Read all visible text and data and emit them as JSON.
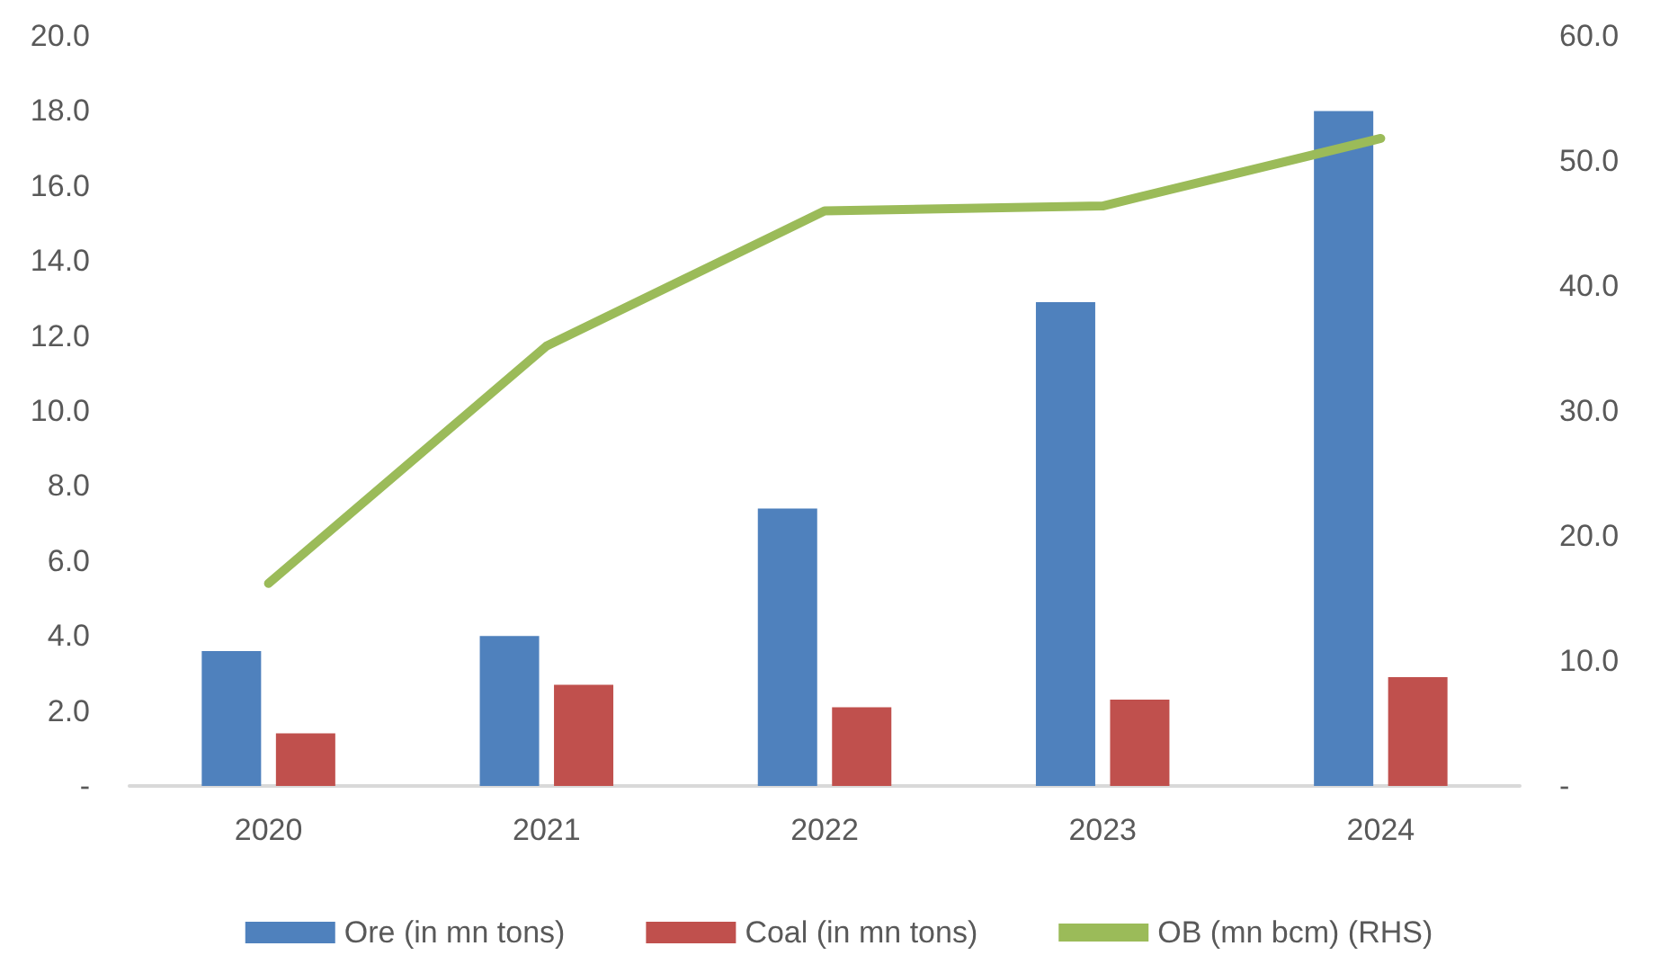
{
  "chart_data": {
    "type": "bar",
    "categories": [
      "2020",
      "2021",
      "2022",
      "2023",
      "2024"
    ],
    "series": [
      {
        "name": "Ore (in mn tons)",
        "color": "#4f81bd",
        "values": [
          3.6,
          4.0,
          7.4,
          12.9,
          18.0
        ]
      },
      {
        "name": "Coal (in mn tons)",
        "color": "#c0504d",
        "values": [
          1.4,
          2.7,
          2.1,
          2.3,
          2.9
        ]
      },
      {
        "name": "OB (mn bcm) (RHS)",
        "type": "line",
        "axis": "y2",
        "color": "#9bbb59",
        "values": [
          16.2,
          35.2,
          46.0,
          46.4,
          51.8
        ]
      }
    ],
    "ylim": [
      0,
      20
    ],
    "yticks": [
      {
        "value": 0,
        "label": "-"
      },
      {
        "value": 2,
        "label": "2.0"
      },
      {
        "value": 4,
        "label": "4.0"
      },
      {
        "value": 6,
        "label": "6.0"
      },
      {
        "value": 8,
        "label": "8.0"
      },
      {
        "value": 10,
        "label": "10.0"
      },
      {
        "value": 12,
        "label": "12.0"
      },
      {
        "value": 14,
        "label": "14.0"
      },
      {
        "value": 16,
        "label": "16.0"
      },
      {
        "value": 18,
        "label": "18.0"
      },
      {
        "value": 20,
        "label": "20.0"
      }
    ],
    "y2lim": [
      0,
      60
    ],
    "y2ticks": [
      {
        "value": 0,
        "label": "-"
      },
      {
        "value": 10,
        "label": "10.0"
      },
      {
        "value": 20,
        "label": "20.0"
      },
      {
        "value": 30,
        "label": "30.0"
      },
      {
        "value": 40,
        "label": "40.0"
      },
      {
        "value": 50,
        "label": "50.0"
      },
      {
        "value": 60,
        "label": "60.0"
      }
    ],
    "grid": false,
    "legend": "bottom",
    "marker": "none"
  }
}
